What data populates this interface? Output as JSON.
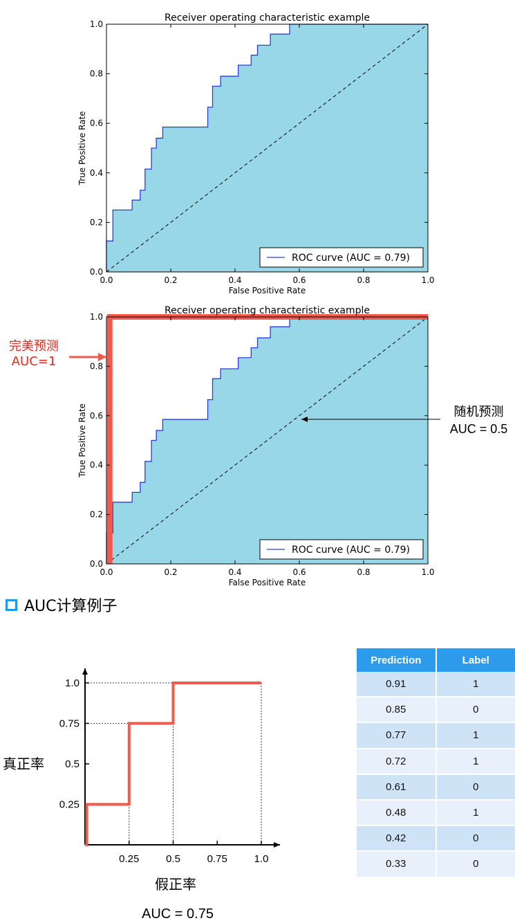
{
  "annotations": {
    "perfect_title": "完美预测",
    "perfect_auc": "AUC=1",
    "random_title": "随机预测",
    "random_auc": "AUC = 0.5"
  },
  "section_heading": "AUC计算例子",
  "auc_example": {
    "y_label": "真正率",
    "x_label": "假正率",
    "auc_text": "AUC = 0.75"
  },
  "table": {
    "headers": [
      "Prediction",
      "Label"
    ],
    "rows": [
      [
        "0.91",
        "1"
      ],
      [
        "0.85",
        "0"
      ],
      [
        "0.77",
        "1"
      ],
      [
        "0.72",
        "1"
      ],
      [
        "0.61",
        "0"
      ],
      [
        "0.48",
        "1"
      ],
      [
        "0.42",
        "0"
      ],
      [
        "0.33",
        "0"
      ]
    ]
  },
  "colors": {
    "fill": "#98d7e8",
    "roc_line": "#2b3de0",
    "perfect_line": "#ef5a4d",
    "step_line": "#ef5a4d",
    "table_header": "#2e9bea"
  },
  "chart_data": [
    {
      "type": "line",
      "title": "Receiver operating characteristic example",
      "xlabel": "False Positive Rate",
      "ylabel": "True Positive Rate",
      "xlim": [
        0,
        1
      ],
      "ylim": [
        0,
        1
      ],
      "xticks": [
        "0.0",
        "0.2",
        "0.4",
        "0.6",
        "0.8",
        "1.0"
      ],
      "yticks": [
        "0.0",
        "0.2",
        "0.4",
        "0.6",
        "0.8",
        "1.0"
      ],
      "legend": "ROC curve (AUC = 0.79)",
      "legend_position": "lower-right",
      "series": [
        {
          "name": "ROC curve (AUC = 0.79)",
          "x": [
            0,
            0,
            0.02,
            0.02,
            0.08,
            0.08,
            0.105,
            0.105,
            0.12,
            0.12,
            0.14,
            0.14,
            0.155,
            0.155,
            0.175,
            0.175,
            0.315,
            0.315,
            0.33,
            0.33,
            0.355,
            0.355,
            0.41,
            0.41,
            0.45,
            0.45,
            0.47,
            0.47,
            0.49,
            0.49,
            0.51,
            0.51,
            0.57,
            0.57,
            1.0
          ],
          "y": [
            0,
            0.125,
            0.125,
            0.25,
            0.25,
            0.29,
            0.29,
            0.33,
            0.33,
            0.415,
            0.415,
            0.5,
            0.5,
            0.54,
            0.54,
            0.585,
            0.585,
            0.665,
            0.665,
            0.75,
            0.75,
            0.79,
            0.79,
            0.835,
            0.835,
            0.875,
            0.875,
            0.915,
            0.915,
            0.915,
            0.915,
            0.96,
            0.96,
            1.0,
            1.0
          ]
        },
        {
          "name": "",
          "x": [
            0,
            1
          ],
          "y": [
            0,
            1
          ],
          "style": "dashed"
        }
      ]
    },
    {
      "type": "line",
      "title": "Receiver operating characteristic example",
      "xlabel": "False Positive Rate",
      "ylabel": "True Positive Rate",
      "xlim": [
        0,
        1
      ],
      "ylim": [
        0,
        1
      ],
      "xticks": [
        "0.0",
        "0.2",
        "0.4",
        "0.6",
        "0.8",
        "1.0"
      ],
      "yticks": [
        "0.0",
        "0.2",
        "0.4",
        "0.6",
        "0.8",
        "1.0"
      ],
      "legend": "ROC curve (AUC = 0.79)",
      "legend_position": "lower-right",
      "series": [
        {
          "name": "ROC curve (AUC = 0.79)",
          "x": [
            0,
            0,
            0.02,
            0.02,
            0.08,
            0.08,
            0.105,
            0.105,
            0.12,
            0.12,
            0.14,
            0.14,
            0.155,
            0.155,
            0.175,
            0.175,
            0.315,
            0.315,
            0.33,
            0.33,
            0.355,
            0.355,
            0.41,
            0.41,
            0.45,
            0.45,
            0.47,
            0.47,
            0.49,
            0.49,
            0.51,
            0.51,
            0.57,
            0.57,
            1.0
          ],
          "y": [
            0,
            0.125,
            0.125,
            0.25,
            0.25,
            0.29,
            0.29,
            0.33,
            0.33,
            0.415,
            0.415,
            0.5,
            0.5,
            0.54,
            0.54,
            0.585,
            0.585,
            0.665,
            0.665,
            0.75,
            0.75,
            0.79,
            0.79,
            0.835,
            0.835,
            0.875,
            0.875,
            0.915,
            0.915,
            0.915,
            0.915,
            0.96,
            0.96,
            1.0,
            1.0
          ]
        },
        {
          "name": "",
          "x": [
            0,
            1
          ],
          "y": [
            0,
            1
          ],
          "style": "dashed"
        },
        {
          "name": "",
          "x": [
            0.01,
            0.01,
            1.0
          ],
          "y": [
            0,
            1.0,
            1.0
          ],
          "style": "thick-red"
        }
      ]
    },
    {
      "type": "line",
      "title": "",
      "xlabel": "假正率",
      "ylabel": "真正率",
      "xlim": [
        0,
        1
      ],
      "ylim": [
        0,
        1
      ],
      "xticks": [
        "0.25",
        "0.5",
        "0.75",
        "1.0"
      ],
      "yticks": [
        "0.25",
        "0.5",
        "0.75",
        "1.0"
      ],
      "series": [
        {
          "name": "",
          "x": [
            0,
            0.01,
            0.01,
            0.25,
            0.25,
            0.5,
            0.5,
            1.0
          ],
          "y": [
            0,
            0,
            0.25,
            0.25,
            0.75,
            0.75,
            1.0,
            1.0
          ]
        }
      ]
    }
  ]
}
